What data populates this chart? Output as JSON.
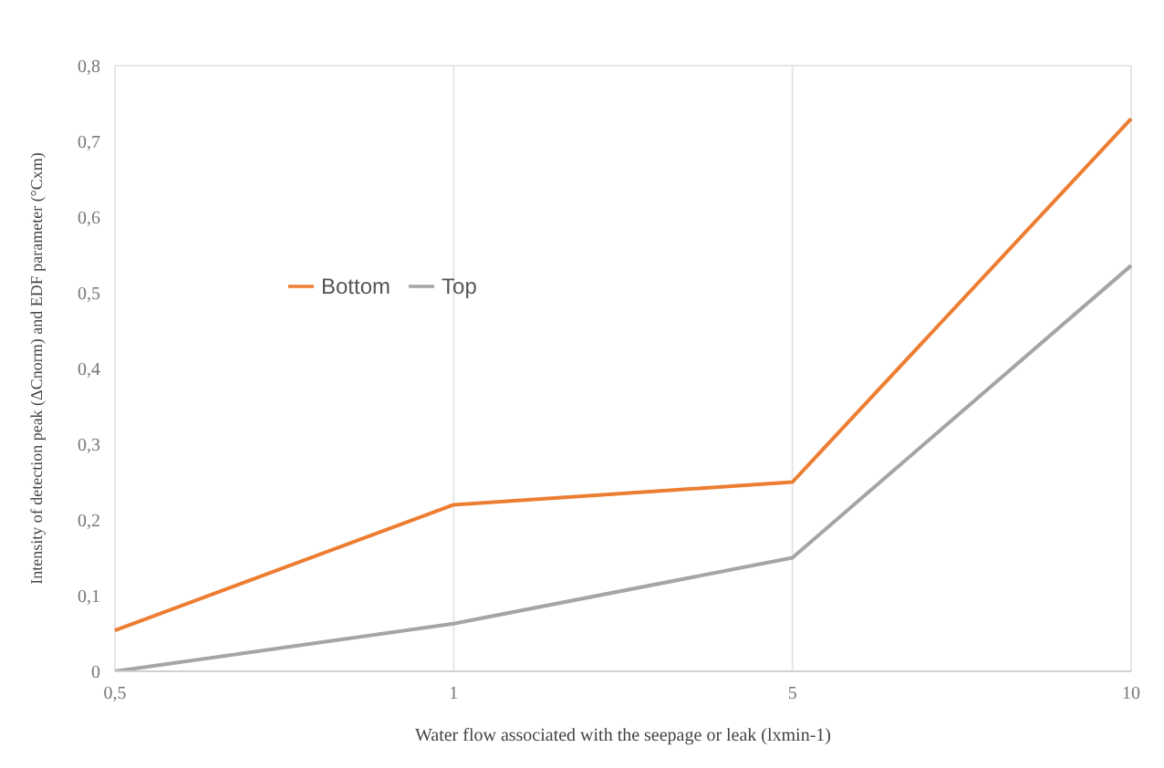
{
  "chart_data": {
    "type": "line",
    "xlabel": "Water flow associated with the seepage or leak (lxmin-1)",
    "ylabel": "Intensity of detection peak (ΔCnorm) and EDF parameter (°Cxm)",
    "categories": [
      "0,5",
      "1",
      "5",
      "10"
    ],
    "series": [
      {
        "name": "Bottom",
        "color": "#ed7d31",
        "values": [
          0.054,
          0.22,
          0.25,
          0.73
        ]
      },
      {
        "name": "Top",
        "color": "#a5a5a5",
        "values": [
          0.0,
          0.063,
          0.15,
          0.536
        ]
      }
    ],
    "ylim": [
      0,
      0.8
    ],
    "yticks": [
      0,
      {
        "value": 0.1,
        "label": "0,1"
      },
      {
        "value": 0.2,
        "label": "0,2"
      },
      {
        "value": 0.3,
        "label": "0,3"
      },
      {
        "value": 0.4,
        "label": "0,4"
      },
      {
        "value": 0.5,
        "label": "0,5"
      },
      {
        "value": 0.6,
        "label": "0,6"
      },
      {
        "value": 0.7,
        "label": "0,7"
      },
      {
        "value": 0.8,
        "label": "0,8"
      }
    ],
    "grid": true,
    "legend": "top left",
    "marker": "none",
    "line_style": "solid"
  }
}
